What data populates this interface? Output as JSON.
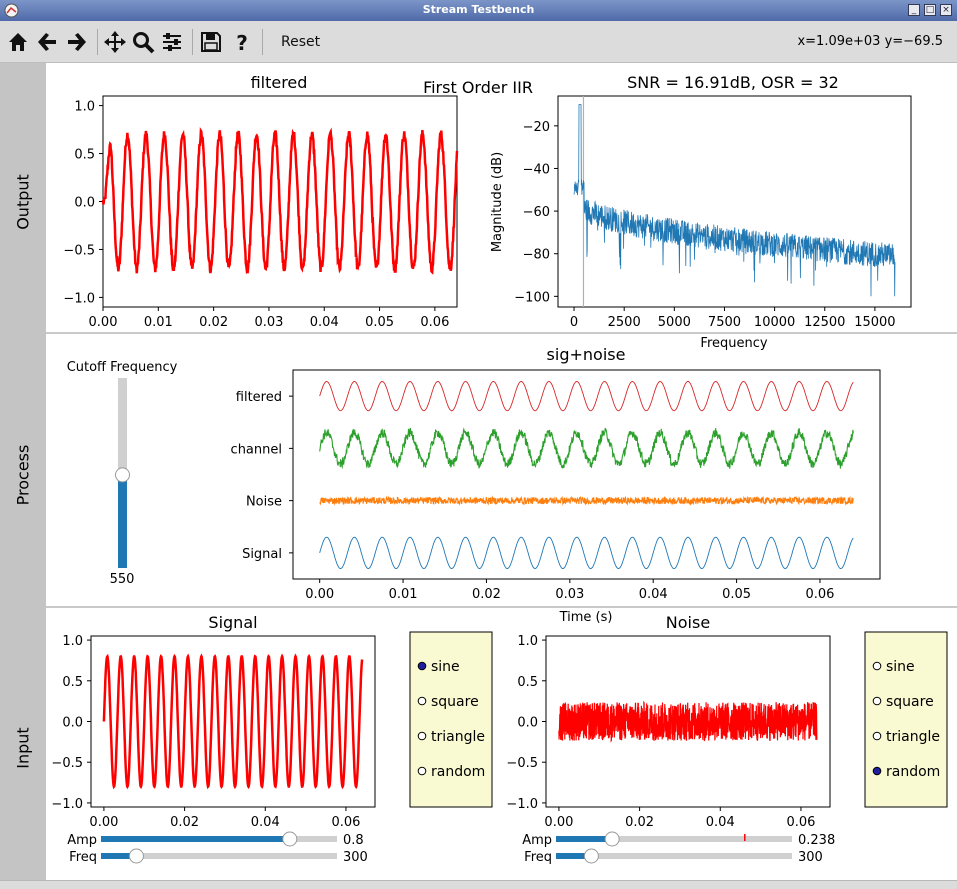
{
  "window": {
    "title": "Stream Testbench"
  },
  "toolbar": {
    "buttons": [
      {
        "icon": "home-icon"
      },
      {
        "icon": "back-arrow-icon"
      },
      {
        "icon": "forward-arrow-icon"
      },
      {
        "icon": "pan-move-icon"
      },
      {
        "icon": "zoom-magnifier-icon"
      },
      {
        "icon": "subplot-config-icon"
      },
      {
        "icon": "save-floppy-icon"
      },
      {
        "icon": "help-question-icon"
      }
    ],
    "reset_label": "Reset",
    "coordinates": "x=1.09e+03 y=−69.5"
  },
  "sections": {
    "output": "Output",
    "process": "Process",
    "input": "Input"
  },
  "figure_title": "First Order IIR",
  "process": {
    "slider_label": "Cutoff Frequency",
    "slider_value": "550",
    "slider_fraction": 0.49
  },
  "input": {
    "signal_radio": {
      "options": [
        "sine",
        "square",
        "triangle",
        "random"
      ],
      "selected": 0
    },
    "noise_radio": {
      "options": [
        "sine",
        "square",
        "triangle",
        "random"
      ],
      "selected": 3
    },
    "signal_amp": {
      "label": "Amp",
      "value": "0.8",
      "fraction": 0.8
    },
    "signal_freq": {
      "label": "Freq",
      "value": "300",
      "fraction": 0.15
    },
    "noise_amp": {
      "label": "Amp",
      "value": "0.238",
      "fraction": 0.238,
      "marker_fraction": 0.8
    },
    "noise_freq": {
      "label": "Freq",
      "value": "300",
      "fraction": 0.15
    },
    "accent_color": "#1f77b4"
  },
  "chart_data": [
    {
      "id": "filtered",
      "type": "line",
      "title": "filtered",
      "xlim": [
        0,
        0.064
      ],
      "ylim": [
        -1.1,
        1.1
      ],
      "xticks": [
        "0.00",
        "0.01",
        "0.02",
        "0.03",
        "0.04",
        "0.05",
        "0.06"
      ],
      "yticks": [
        "1.0",
        "0.5",
        "0.0",
        "−0.5",
        "−1.0"
      ],
      "series": [
        {
          "color": "#ff0000",
          "frequency_hz": 300,
          "amplitude": 0.7
        }
      ]
    },
    {
      "id": "spectrum",
      "type": "line",
      "title": "SNR = 16.91dB, OSR = 32",
      "xlabel": "Frequency",
      "ylabel": "Magnitude (dB)",
      "xlim": [
        -800,
        16800
      ],
      "ylim": [
        -105,
        -6
      ],
      "xticks": [
        "0",
        "2500",
        "5000",
        "7500",
        "10000",
        "12500",
        "15000"
      ],
      "yticks": [
        "−20",
        "−40",
        "−60",
        "−80",
        "−100"
      ],
      "series": [
        {
          "color": "#1f77b4",
          "peak_x": 300,
          "peak_y": -10,
          "floor_start": -50,
          "floor_end": -78
        }
      ],
      "marker_line_x": 470
    },
    {
      "id": "sig_noise",
      "type": "line",
      "title": "sig+noise",
      "xlabel": "Time (s)",
      "xlim": [
        -0.0032,
        0.0672
      ],
      "xticks": [
        "0.00",
        "0.01",
        "0.02",
        "0.03",
        "0.04",
        "0.05",
        "0.06"
      ],
      "series": [
        {
          "name": "filtered",
          "color": "#d62728"
        },
        {
          "name": "channel",
          "color": "#2ca02c"
        },
        {
          "name": "Noise",
          "color": "#ff7f0e"
        },
        {
          "name": "Signal",
          "color": "#1f77b4"
        }
      ]
    },
    {
      "id": "signal",
      "type": "line",
      "title": "Signal",
      "xlim": [
        -0.0032,
        0.0672
      ],
      "ylim": [
        -1.05,
        1.05
      ],
      "xticks": [
        "0.00",
        "0.02",
        "0.04",
        "0.06"
      ],
      "yticks": [
        "1.0",
        "0.5",
        "0.0",
        "−0.5",
        "−1.0"
      ],
      "series": [
        {
          "color": "#ff0000",
          "frequency_hz": 300,
          "amplitude": 0.8
        }
      ]
    },
    {
      "id": "noise",
      "type": "line",
      "title": "Noise",
      "xlim": [
        -0.0032,
        0.0672
      ],
      "ylim": [
        -1.05,
        1.05
      ],
      "xticks": [
        "0.00",
        "0.02",
        "0.04",
        "0.06"
      ],
      "yticks": [
        "1.0",
        "0.5",
        "0.0",
        "−0.5",
        "−1.0"
      ],
      "series": [
        {
          "color": "#ff0000",
          "amplitude": 0.238
        }
      ]
    }
  ]
}
